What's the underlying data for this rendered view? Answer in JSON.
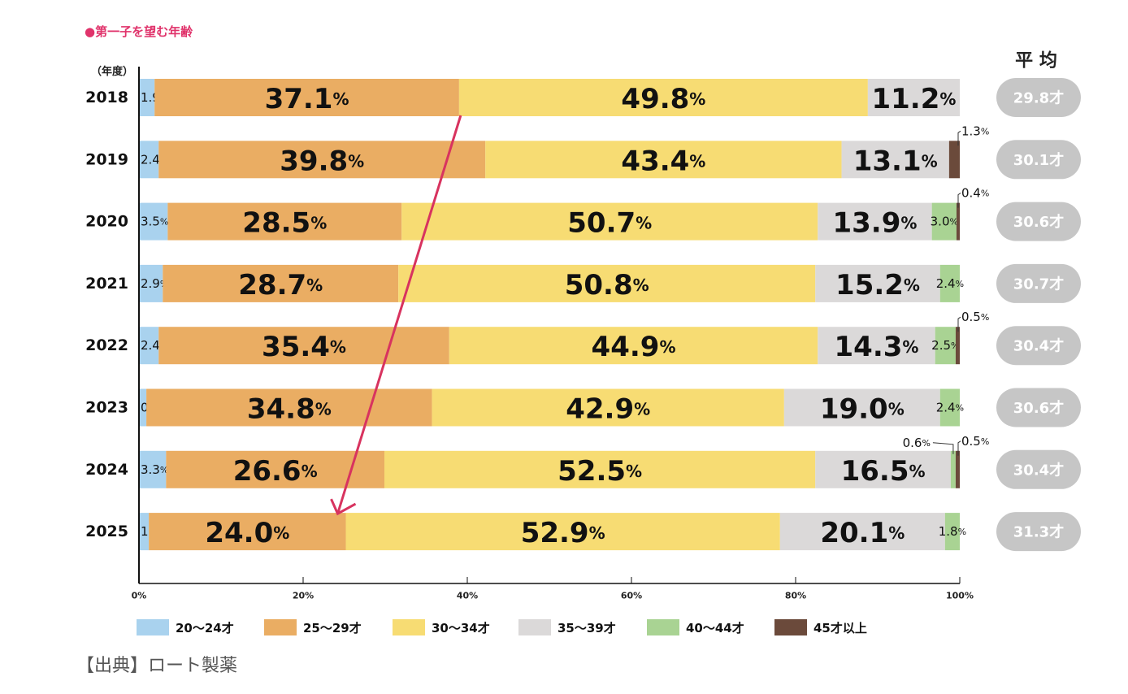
{
  "title": "●第一子を望む年齢",
  "source": "【出典】ロート製薬",
  "chart_data": {
    "type": "bar",
    "orientation": "horizontal",
    "stacked": true,
    "normalized": true,
    "year_header": "（年度）",
    "average_header": "平 均",
    "categories": [
      "2018",
      "2019",
      "2020",
      "2021",
      "2022",
      "2023",
      "2024",
      "2025"
    ],
    "series": [
      {
        "name": "20〜24才",
        "color": "#a9d2ee",
        "values": [
          1.9,
          2.4,
          3.5,
          2.9,
          2.4,
          0.9,
          3.3,
          1.2
        ]
      },
      {
        "name": "25〜29才",
        "color": "#eaad63",
        "values": [
          37.1,
          39.8,
          28.5,
          28.7,
          35.4,
          34.8,
          26.6,
          24.0
        ]
      },
      {
        "name": "30〜34才",
        "color": "#f7dc73",
        "values": [
          49.8,
          43.4,
          50.7,
          50.8,
          44.9,
          42.9,
          52.5,
          52.9
        ]
      },
      {
        "name": "35〜39才",
        "color": "#dbd9d9",
        "values": [
          11.2,
          13.1,
          13.9,
          15.2,
          14.3,
          19.0,
          16.5,
          20.1
        ]
      },
      {
        "name": "40〜44才",
        "color": "#a9d393",
        "values": [
          0,
          0,
          3.0,
          2.4,
          2.5,
          2.4,
          0.6,
          1.8
        ]
      },
      {
        "name": "45才以上",
        "color": "#6b4a3b",
        "values": [
          0,
          1.3,
          0.4,
          0,
          0.5,
          0,
          0.5,
          0
        ]
      }
    ],
    "averages": [
      "29.8才",
      "30.1才",
      "30.6才",
      "30.7才",
      "30.4才",
      "30.6才",
      "30.4才",
      "31.3才"
    ],
    "x_ticks": [
      "0%",
      "20%",
      "40%",
      "60%",
      "80%",
      "100%"
    ],
    "xlim": [
      0,
      100
    ],
    "legend_position": "bottom",
    "annotation": "arrow from 2018 25〜29才 boundary down to 2025 25〜29才 boundary",
    "annotation_color": "#d8335f"
  }
}
